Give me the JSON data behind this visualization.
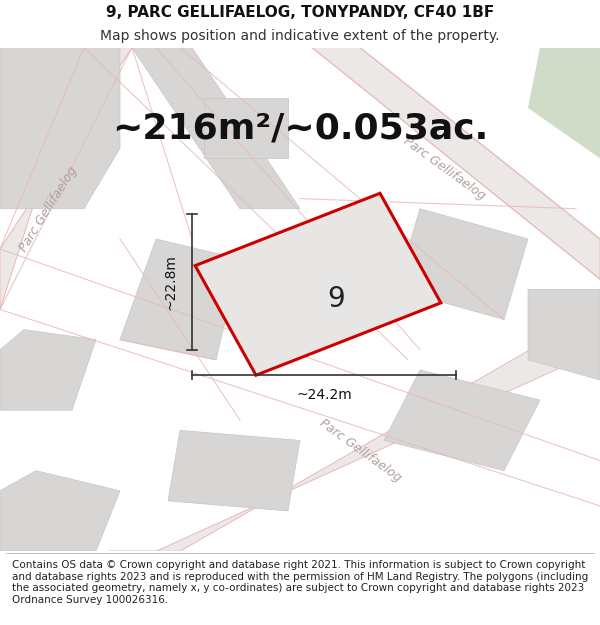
{
  "title_line1": "9, PARC GELLIFAELOG, TONYPANDY, CF40 1BF",
  "title_line2": "Map shows position and indicative extent of the property.",
  "area_text": "~216m²/~0.053ac.",
  "label_number": "9",
  "dim_width": "~24.2m",
  "dim_height": "~22.8m",
  "footer_text": "Contains OS data © Crown copyright and database right 2021. This information is subject to Crown copyright and database rights 2023 and is reproduced with the permission of HM Land Registry. The polygons (including the associated geometry, namely x, y co-ordinates) are subject to Crown copyright and database rights 2023 Ordnance Survey 100026316.",
  "map_bg": "#f2f0ee",
  "road_line_color": "#e8b8b8",
  "road_fill_color": "#ede8e8",
  "block_fill": "#d8d6d4",
  "block_edge": "#c8c6c4",
  "green_fill": "#d0dbc8",
  "plot_fill": "#e8e6e4",
  "plot_edge": "#cc0000",
  "road_text_color": "#b0a0a0",
  "dim_line_color": "#333333",
  "title_fontsize": 11,
  "subtitle_fontsize": 10,
  "area_fontsize": 26,
  "label_fontsize": 20,
  "dim_fontsize": 10,
  "road_label_fontsize": 9,
  "footer_fontsize": 7.5
}
